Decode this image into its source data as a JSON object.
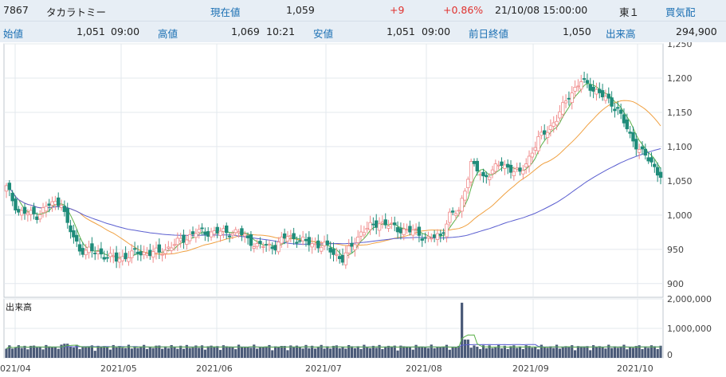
{
  "header": {
    "code": "7867",
    "name": "タカラトミー",
    "current_label": "現在値",
    "current_value": "1,059",
    "change": "+9",
    "change_pct": "+0.86%",
    "datetime": "21/10/08  15:00:00",
    "market": "東１",
    "indicator": "買気配",
    "open_label": "始値",
    "open_value": "1,051",
    "open_time": "09:00",
    "high_label": "高値",
    "high_value": "1,069",
    "high_time": "10:21",
    "low_label": "安値",
    "low_value": "1,051",
    "low_time": "09:00",
    "prev_label": "前日終値",
    "prev_value": "1,050",
    "volume_label": "出来高",
    "volume_value": "294,900"
  },
  "colors": {
    "up": "#f08a8a",
    "down": "#1f8c7a",
    "ma_short": "#5bb14a",
    "ma_mid": "#f0a040",
    "ma_long": "#5b5fd0",
    "volume": "#4a5a78"
  },
  "chart_data": {
    "type": "candlestick",
    "price_axis": {
      "ylim": [
        880,
        1250
      ],
      "ticks": [
        900,
        950,
        1000,
        1050,
        1100,
        1150,
        1200,
        1250
      ]
    },
    "volume_axis": {
      "label": "出来高",
      "ylim": [
        0,
        2000000
      ],
      "ticks": [
        0,
        1000000,
        2000000
      ],
      "tick_labels": [
        "0",
        "1,000,000",
        "2,000,000"
      ]
    },
    "x_axis": {
      "month_labels": [
        "021/04",
        "2021/05",
        "2021/06",
        "2021/07",
        "2021/08",
        "2021/09",
        "2021/10"
      ]
    },
    "series_ma": [
      "short",
      "mid",
      "long"
    ],
    "key_points": [
      {
        "date": "2021/04",
        "close": 1040
      },
      {
        "date": "2021/05",
        "close": 955
      },
      {
        "date": "2021/06",
        "close": 965
      },
      {
        "date": "2021/07",
        "close": 955
      },
      {
        "date": "2021/08",
        "close": 970
      },
      {
        "date": "2021/08 high",
        "close": 1090
      },
      {
        "date": "2021/09",
        "close": 1130
      },
      {
        "date": "2021/09 peak",
        "close": 1210
      },
      {
        "date": "2021/10",
        "close": 1085
      },
      {
        "date": "2021/10/08",
        "close": 1059
      }
    ]
  }
}
